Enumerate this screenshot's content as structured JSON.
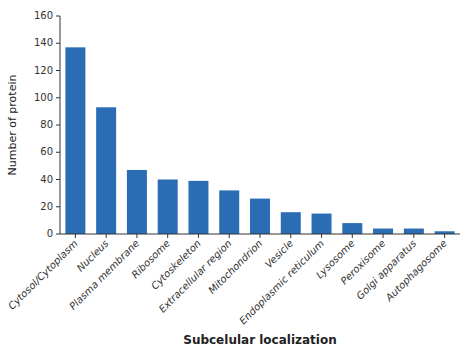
{
  "chart_data": {
    "type": "bar",
    "categories": [
      "Cytosol/Cytoplasm",
      "Nucleus",
      "Plasma membrane",
      "Ribosome",
      "Cytoskeleton",
      "Extracellular region",
      "Mitochondrion",
      "Vesicle",
      "Endoplasmic reticulum",
      "Lysosome",
      "Peroxisome",
      "Golgi apparatus",
      "Autophagosome"
    ],
    "values": [
      137,
      93,
      47,
      40,
      39,
      32,
      26,
      16,
      15,
      8,
      4,
      4,
      2
    ],
    "color": "#2a6db5",
    "xlabel": "Subcelular localization",
    "ylabel": "Number of protein",
    "ylim": [
      0,
      160
    ],
    "yticks": [
      0,
      20,
      40,
      60,
      80,
      100,
      120,
      140,
      160
    ],
    "grid": false
  }
}
